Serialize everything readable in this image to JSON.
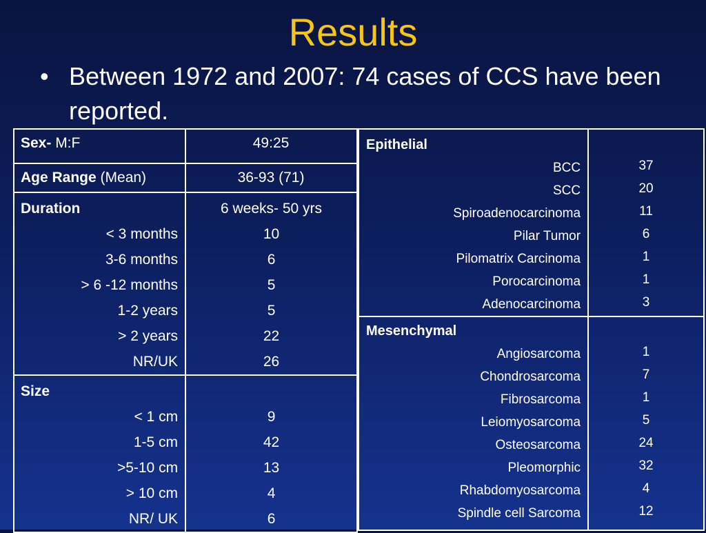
{
  "slide": {
    "title": "Results",
    "bullet_mark": "•",
    "bullet_text": "Between 1972 and 2007: 74 cases of CCS have been reported."
  },
  "left_table": {
    "sex": {
      "label_bold": "Sex-",
      "label_rest": " M:F",
      "value": "49:25"
    },
    "age": {
      "label_bold": "Age Range",
      "label_rest": " (Mean)",
      "value": "36-93 (71)"
    },
    "duration": {
      "heading": "Duration",
      "heading_value": "6 weeks- 50 yrs",
      "rows": [
        {
          "label": "< 3 months",
          "value": "10"
        },
        {
          "label": "3-6 months",
          "value": "6"
        },
        {
          "label": "> 6 -12 months",
          "value": "5"
        },
        {
          "label": "1-2 years",
          "value": "5"
        },
        {
          "label": "> 2 years",
          "value": "22"
        },
        {
          "label": "NR/UK",
          "value": "26"
        }
      ]
    },
    "size": {
      "heading": "Size",
      "rows": [
        {
          "label": "< 1 cm",
          "value": "9"
        },
        {
          "label": "1-5 cm",
          "value": "42"
        },
        {
          "label": ">5-10 cm",
          "value": "13"
        },
        {
          "label": "> 10 cm",
          "value": "4"
        },
        {
          "label": "NR/ UK",
          "value": "6"
        }
      ]
    }
  },
  "right_table": {
    "epithelial": {
      "heading": "Epithelial",
      "rows": [
        {
          "label": "BCC",
          "value": "37"
        },
        {
          "label": "SCC",
          "value": "20"
        },
        {
          "label": "Spiroadenocarcinoma",
          "value": "11"
        },
        {
          "label": "Pilar Tumor",
          "value": "6"
        },
        {
          "label": "Pilomatrix Carcinoma",
          "value": "1"
        },
        {
          "label": "Porocarcinoma",
          "value": "1"
        },
        {
          "label": "Adenocarcinoma",
          "value": "3"
        }
      ]
    },
    "mesenchymal": {
      "heading": "Mesenchymal",
      "rows": [
        {
          "label": "Angiosarcoma",
          "value": "1"
        },
        {
          "label": "Chondrosarcoma",
          "value": "7"
        },
        {
          "label": "Fibrosarcoma",
          "value": "1"
        },
        {
          "label": "Leiomyosarcoma",
          "value": "5"
        },
        {
          "label": "Osteosarcoma",
          "value": "24"
        },
        {
          "label": "Pleomorphic",
          "value": "32"
        },
        {
          "label": "Rhabdomyosarcoma",
          "value": "4"
        },
        {
          "label": "Spindle cell Sarcoma",
          "value": "12"
        }
      ]
    }
  },
  "colors": {
    "title": "#f5c518",
    "text": "#ffffff",
    "background_top": "#0a1440",
    "background_bottom": "#15328e"
  }
}
